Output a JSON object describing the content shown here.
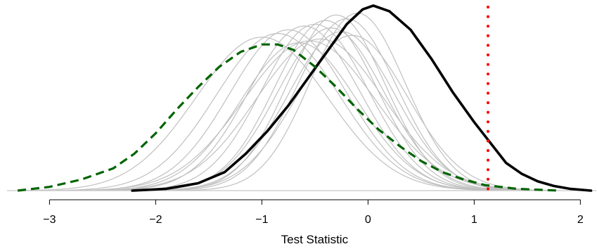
{
  "chart_data": {
    "type": "line",
    "title": "",
    "xlabel": "Test Statistic",
    "ylabel": "",
    "xlim": [
      -3.4,
      2.15
    ],
    "ylim": [
      0,
      1
    ],
    "grid": false,
    "x_ticks": [
      -3,
      -2,
      -1,
      0,
      1,
      2
    ],
    "x_tick_labels": [
      "−3",
      "−2",
      "−1",
      "0",
      "1",
      "2"
    ],
    "reference_line": {
      "x": 1.13,
      "color": "#ff0000",
      "style": "dotted"
    },
    "baseline_color": "#c8c8c8",
    "series": [
      {
        "role": "observed",
        "color": "#000000",
        "style": "solid",
        "points": [
          [
            -2.22,
            0.0
          ],
          [
            -1.9,
            0.01
          ],
          [
            -1.6,
            0.04
          ],
          [
            -1.35,
            0.1
          ],
          [
            -1.15,
            0.2
          ],
          [
            -0.95,
            0.32
          ],
          [
            -0.75,
            0.46
          ],
          [
            -0.55,
            0.62
          ],
          [
            -0.35,
            0.78
          ],
          [
            -0.2,
            0.9
          ],
          [
            -0.05,
            0.98
          ],
          [
            0.05,
            1.0
          ],
          [
            0.2,
            0.97
          ],
          [
            0.4,
            0.87
          ],
          [
            0.6,
            0.71
          ],
          [
            0.8,
            0.53
          ],
          [
            1.0,
            0.37
          ],
          [
            1.15,
            0.26
          ],
          [
            1.3,
            0.15
          ],
          [
            1.45,
            0.09
          ],
          [
            1.6,
            0.05
          ],
          [
            1.75,
            0.025
          ],
          [
            1.9,
            0.01
          ],
          [
            2.1,
            0.0
          ]
        ]
      },
      {
        "role": "null",
        "color": "#006400",
        "style": "dashed",
        "points": [
          [
            -3.3,
            0.0
          ],
          [
            -3.0,
            0.02
          ],
          [
            -2.7,
            0.06
          ],
          [
            -2.4,
            0.12
          ],
          [
            -2.2,
            0.2
          ],
          [
            -2.0,
            0.31
          ],
          [
            -1.8,
            0.44
          ],
          [
            -1.6,
            0.56
          ],
          [
            -1.4,
            0.67
          ],
          [
            -1.2,
            0.75
          ],
          [
            -1.0,
            0.79
          ],
          [
            -0.85,
            0.79
          ],
          [
            -0.7,
            0.76
          ],
          [
            -0.5,
            0.67
          ],
          [
            -0.3,
            0.56
          ],
          [
            -0.1,
            0.44
          ],
          [
            0.1,
            0.33
          ],
          [
            0.3,
            0.24
          ],
          [
            0.5,
            0.16
          ],
          [
            0.7,
            0.1
          ],
          [
            0.9,
            0.06
          ],
          [
            1.1,
            0.03
          ],
          [
            1.4,
            0.01
          ],
          [
            1.8,
            0.0
          ]
        ]
      },
      {
        "role": "simulation",
        "color": "#c0c0c0",
        "style": "solid",
        "curves": [
          {
            "mean": -1.0,
            "sd": 0.62,
            "peak": 0.83
          },
          {
            "mean": -0.85,
            "sd": 0.58,
            "peak": 0.85
          },
          {
            "mean": -0.75,
            "sd": 0.55,
            "peak": 0.87
          },
          {
            "mean": -0.6,
            "sd": 0.52,
            "peak": 0.89
          },
          {
            "mean": -0.5,
            "sd": 0.5,
            "peak": 0.9
          },
          {
            "mean": -0.4,
            "sd": 0.48,
            "peak": 0.92
          },
          {
            "mean": -0.35,
            "sd": 0.5,
            "peak": 0.88
          },
          {
            "mean": -0.3,
            "sd": 0.46,
            "peak": 0.95
          },
          {
            "mean": -0.25,
            "sd": 0.5,
            "peak": 0.86
          },
          {
            "mean": -0.2,
            "sd": 0.47,
            "peak": 0.93
          },
          {
            "mean": -0.15,
            "sd": 0.52,
            "peak": 0.84
          },
          {
            "mean": -0.1,
            "sd": 0.45,
            "peak": 0.96
          },
          {
            "mean": -0.45,
            "sd": 0.6,
            "peak": 0.82
          },
          {
            "mean": -0.65,
            "sd": 0.55,
            "peak": 0.8
          },
          {
            "mean": -0.55,
            "sd": 0.62,
            "peak": 0.81
          }
        ]
      }
    ]
  }
}
